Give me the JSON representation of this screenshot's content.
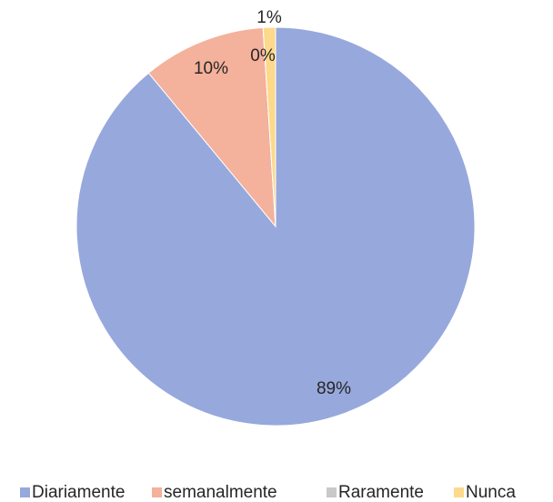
{
  "chart_data": {
    "type": "pie",
    "categories": [
      "Diariamente",
      "semanalmente",
      "Raramente",
      "Nunca"
    ],
    "values": [
      89,
      10,
      0,
      1
    ],
    "value_labels": [
      "89%",
      "10%",
      "0%",
      "1%"
    ],
    "colors": [
      "#97a8dc",
      "#f4b19b",
      "#c9c9c9",
      "#fdd98b"
    ],
    "legend": "bottom"
  }
}
